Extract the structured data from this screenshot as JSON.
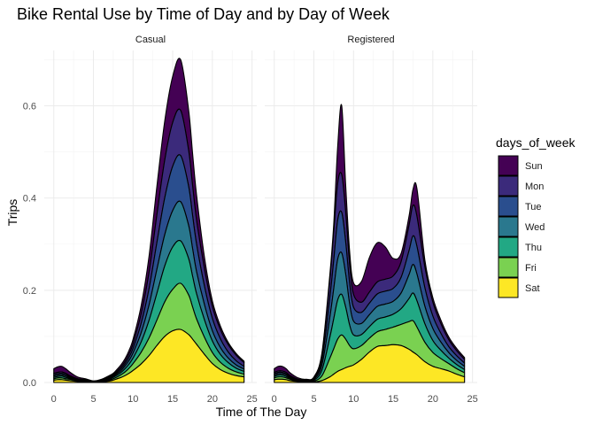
{
  "chart_data": {
    "type": "area",
    "subtype": "stacked density",
    "title": "Bike Rental Use by Time of Day and by Day of Week",
    "xlabel": "Time of The Day",
    "ylabel": "Trips",
    "xlim": [
      0,
      25
    ],
    "ylim": [
      0,
      0.72
    ],
    "x_ticks": [
      "0",
      "5",
      "10",
      "15",
      "20",
      "25"
    ],
    "y_ticks": [
      "0.0",
      "0.2",
      "0.4",
      "0.6"
    ],
    "grid": true,
    "legend": {
      "title": "days_of_week",
      "position": "right"
    },
    "x": [
      0,
      0.5,
      1,
      1.5,
      2,
      3,
      4,
      5,
      6,
      7,
      7.5,
      8,
      8.5,
      9,
      9.5,
      10,
      11,
      12,
      13,
      14,
      15,
      16,
      17,
      17.5,
      18,
      19,
      20,
      21,
      22,
      23,
      24
    ],
    "panels": [
      {
        "name": "Casual",
        "series": [
          {
            "name": "Sat",
            "color": "#FDE725",
            "values": [
              0.005,
              0.006,
              0.006,
              0.005,
              0.004,
              0.002,
              0.001,
              0.0005,
              0.001,
              0.003,
              0.005,
              0.008,
              0.011,
              0.015,
              0.02,
              0.026,
              0.04,
              0.058,
              0.08,
              0.1,
              0.112,
              0.115,
              0.104,
              0.094,
              0.083,
              0.061,
              0.041,
              0.028,
              0.02,
              0.015,
              0.012
            ]
          },
          {
            "name": "Fri",
            "color": "#7AD151",
            "values": [
              0.003,
              0.004,
              0.004,
              0.003,
              0.003,
              0.002,
              0.001,
              0.0005,
              0.001,
              0.002,
              0.003,
              0.004,
              0.006,
              0.008,
              0.011,
              0.015,
              0.025,
              0.038,
              0.055,
              0.075,
              0.09,
              0.1,
              0.086,
              0.07,
              0.055,
              0.037,
              0.024,
              0.016,
              0.011,
              0.008,
              0.006
            ]
          },
          {
            "name": "Thu",
            "color": "#22A884",
            "values": [
              0.003,
              0.003,
              0.004,
              0.003,
              0.002,
              0.001,
              0.001,
              0.0004,
              0.001,
              0.002,
              0.003,
              0.004,
              0.005,
              0.007,
              0.009,
              0.012,
              0.022,
              0.038,
              0.058,
              0.078,
              0.092,
              0.092,
              0.079,
              0.067,
              0.055,
              0.038,
              0.025,
              0.017,
              0.012,
              0.008,
              0.006
            ]
          },
          {
            "name": "Wed",
            "color": "#2A788E",
            "values": [
              0.003,
              0.003,
              0.003,
              0.003,
              0.002,
              0.001,
              0.001,
              0.0004,
              0.001,
              0.002,
              0.002,
              0.003,
              0.004,
              0.006,
              0.008,
              0.011,
              0.02,
              0.033,
              0.052,
              0.068,
              0.079,
              0.085,
              0.072,
              0.06,
              0.048,
              0.033,
              0.022,
              0.015,
              0.01,
              0.007,
              0.005
            ]
          },
          {
            "name": "Tue",
            "color": "#2A4E8E",
            "values": [
              0.003,
              0.003,
              0.003,
              0.003,
              0.002,
              0.001,
              0.001,
              0.0004,
              0.001,
              0.002,
              0.002,
              0.003,
              0.004,
              0.005,
              0.007,
              0.01,
              0.02,
              0.035,
              0.058,
              0.08,
              0.096,
              0.1,
              0.085,
              0.072,
              0.06,
              0.04,
              0.027,
              0.019,
              0.013,
              0.009,
              0.006
            ]
          },
          {
            "name": "Mon",
            "color": "#3B2A7B",
            "values": [
              0.003,
              0.003,
              0.003,
              0.003,
              0.002,
              0.001,
              0.001,
              0.0004,
              0.001,
              0.002,
              0.002,
              0.003,
              0.004,
              0.005,
              0.007,
              0.01,
              0.02,
              0.035,
              0.06,
              0.082,
              0.095,
              0.098,
              0.078,
              0.065,
              0.052,
              0.038,
              0.026,
              0.02,
              0.016,
              0.012,
              0.008
            ]
          },
          {
            "name": "Sun",
            "color": "#440154",
            "values": [
              0.01,
              0.012,
              0.012,
              0.01,
              0.008,
              0.004,
              0.002,
              0.001,
              0.001,
              0.002,
              0.003,
              0.004,
              0.005,
              0.006,
              0.008,
              0.01,
              0.018,
              0.035,
              0.062,
              0.085,
              0.1,
              0.11,
              0.088,
              0.07,
              0.055,
              0.025,
              0.012,
              0.008,
              0.005,
              0.004,
              0.003
            ]
          }
        ]
      },
      {
        "name": "Registered",
        "series": [
          {
            "name": "Sat",
            "color": "#FDE725",
            "values": [
              0.006,
              0.007,
              0.007,
              0.006,
              0.004,
              0.002,
              0.001,
              0.001,
              0.004,
              0.012,
              0.018,
              0.024,
              0.028,
              0.032,
              0.035,
              0.038,
              0.05,
              0.066,
              0.078,
              0.08,
              0.082,
              0.08,
              0.072,
              0.066,
              0.06,
              0.045,
              0.035,
              0.03,
              0.025,
              0.018,
              0.012
            ]
          },
          {
            "name": "Fri",
            "color": "#7AD151",
            "values": [
              0.004,
              0.005,
              0.005,
              0.004,
              0.003,
              0.001,
              0.001,
              0.002,
              0.01,
              0.04,
              0.055,
              0.07,
              0.075,
              0.062,
              0.045,
              0.035,
              0.03,
              0.03,
              0.032,
              0.035,
              0.038,
              0.046,
              0.06,
              0.068,
              0.06,
              0.042,
              0.03,
              0.022,
              0.016,
              0.012,
              0.009
            ]
          },
          {
            "name": "Thu",
            "color": "#22A884",
            "values": [
              0.003,
              0.004,
              0.004,
              0.003,
              0.002,
              0.001,
              0.001,
              0.002,
              0.012,
              0.045,
              0.065,
              0.085,
              0.088,
              0.07,
              0.045,
              0.03,
              0.024,
              0.025,
              0.027,
              0.027,
              0.028,
              0.034,
              0.05,
              0.06,
              0.057,
              0.04,
              0.026,
              0.018,
              0.012,
              0.009,
              0.007
            ]
          },
          {
            "name": "Wed",
            "color": "#2A788E",
            "values": [
              0.003,
              0.003,
              0.003,
              0.003,
              0.002,
              0.001,
              0.001,
              0.002,
              0.011,
              0.043,
              0.065,
              0.088,
              0.09,
              0.072,
              0.046,
              0.03,
              0.024,
              0.026,
              0.028,
              0.028,
              0.028,
              0.034,
              0.052,
              0.062,
              0.058,
              0.038,
              0.026,
              0.018,
              0.012,
              0.009,
              0.007
            ]
          },
          {
            "name": "Tue",
            "color": "#2A4E8E",
            "values": [
              0.003,
              0.003,
              0.003,
              0.003,
              0.002,
              0.001,
              0.001,
              0.002,
              0.011,
              0.042,
              0.062,
              0.085,
              0.088,
              0.07,
              0.045,
              0.03,
              0.024,
              0.025,
              0.027,
              0.028,
              0.028,
              0.034,
              0.052,
              0.062,
              0.06,
              0.04,
              0.027,
              0.019,
              0.013,
              0.01,
              0.007
            ]
          },
          {
            "name": "Mon",
            "color": "#3B2A7B",
            "values": [
              0.003,
              0.003,
              0.003,
              0.003,
              0.002,
              0.001,
              0.001,
              0.002,
              0.011,
              0.04,
              0.06,
              0.08,
              0.082,
              0.065,
              0.042,
              0.028,
              0.022,
              0.024,
              0.026,
              0.026,
              0.027,
              0.034,
              0.055,
              0.066,
              0.065,
              0.045,
              0.03,
              0.021,
              0.015,
              0.011,
              0.008
            ]
          },
          {
            "name": "Sun",
            "color": "#440154",
            "values": [
              0.008,
              0.01,
              0.01,
              0.008,
              0.006,
              0.003,
              0.001,
              0.001,
              0.004,
              0.01,
              0.018,
              0.08,
              0.15,
              0.06,
              0.028,
              0.025,
              0.045,
              0.075,
              0.085,
              0.07,
              0.038,
              0.018,
              0.02,
              0.035,
              0.06,
              0.015,
              0.01,
              0.008,
              0.006,
              0.005,
              0.004
            ]
          }
        ]
      }
    ]
  }
}
